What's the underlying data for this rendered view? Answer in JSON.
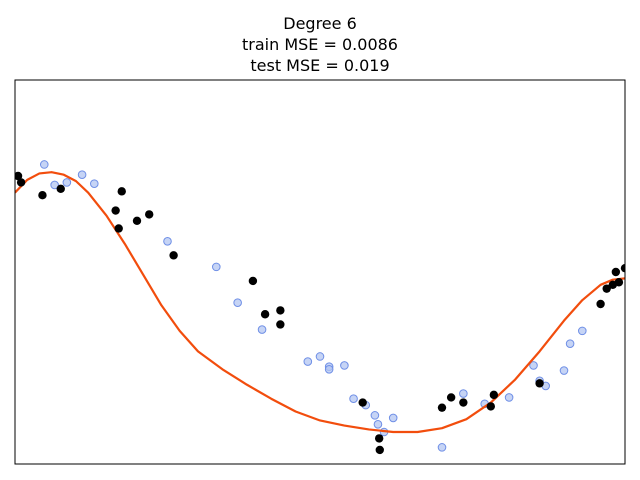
{
  "chart_data": {
    "type": "scatter",
    "title_lines": [
      "Degree 6",
      "train MSE = 0.0086",
      "test MSE = 0.019"
    ],
    "xlabel": "",
    "ylabel": "",
    "xlim": [
      0,
      1
    ],
    "ylim": [
      -1.5,
      1.5
    ],
    "ticks_visible": false,
    "grid": false,
    "colors": {
      "fit": "#f24d0d",
      "train": "#000000",
      "test_fill": "#b3c6f2",
      "test_edge": "#6f8fe6"
    },
    "fit_curve": {
      "x": [
        0.0,
        0.02,
        0.04,
        0.06,
        0.08,
        0.1,
        0.12,
        0.15,
        0.18,
        0.21,
        0.24,
        0.27,
        0.3,
        0.34,
        0.38,
        0.42,
        0.46,
        0.5,
        0.54,
        0.58,
        0.62,
        0.66,
        0.7,
        0.74,
        0.78,
        0.82,
        0.86,
        0.9,
        0.93,
        0.96,
        0.98,
        1.0
      ],
      "y": [
        0.62,
        0.72,
        0.77,
        0.78,
        0.76,
        0.71,
        0.62,
        0.44,
        0.22,
        -0.02,
        -0.26,
        -0.46,
        -0.62,
        -0.76,
        -0.88,
        -0.99,
        -1.09,
        -1.16,
        -1.2,
        -1.23,
        -1.25,
        -1.25,
        -1.22,
        -1.15,
        -1.02,
        -0.84,
        -0.62,
        -0.38,
        -0.22,
        -0.1,
        -0.06,
        -0.05
      ]
    },
    "train_points": {
      "x": [
        0.005,
        0.01,
        0.045,
        0.075,
        0.165,
        0.17,
        0.175,
        0.2,
        0.22,
        0.26,
        0.39,
        0.41,
        0.435,
        0.435,
        0.57,
        0.597,
        0.598,
        0.7,
        0.715,
        0.735,
        0.78,
        0.785,
        0.86,
        0.96,
        0.97,
        0.98,
        0.985,
        0.99,
        1.0
      ],
      "y": [
        0.75,
        0.7,
        0.6,
        0.65,
        0.48,
        0.34,
        0.63,
        0.4,
        0.45,
        0.13,
        -0.07,
        -0.33,
        -0.3,
        -0.41,
        -1.02,
        -1.3,
        -1.39,
        -1.06,
        -0.98,
        -1.02,
        -1.05,
        -0.96,
        -0.87,
        -0.25,
        -0.13,
        -0.1,
        0.0,
        -0.08,
        0.03
      ]
    },
    "test_points": {
      "x": [
        0.048,
        0.065,
        0.085,
        0.11,
        0.13,
        0.25,
        0.33,
        0.365,
        0.405,
        0.48,
        0.5,
        0.515,
        0.515,
        0.54,
        0.555,
        0.575,
        0.59,
        0.595,
        0.605,
        0.62,
        0.7,
        0.735,
        0.77,
        0.81,
        0.85,
        0.86,
        0.87,
        0.9,
        0.91,
        0.93
      ],
      "y": [
        0.84,
        0.68,
        0.7,
        0.76,
        0.69,
        0.24,
        0.04,
        -0.24,
        -0.45,
        -0.7,
        -0.66,
        -0.74,
        -0.76,
        -0.73,
        -0.99,
        -1.04,
        -1.12,
        -1.19,
        -1.25,
        -1.14,
        -1.37,
        -0.95,
        -1.03,
        -0.98,
        -0.73,
        -0.85,
        -0.89,
        -0.77,
        -0.56,
        -0.46
      ]
    }
  }
}
